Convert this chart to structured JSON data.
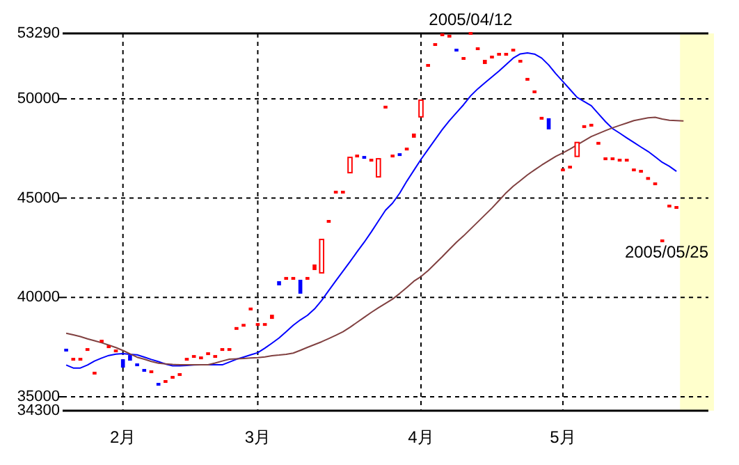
{
  "chart_data": {
    "type": "candlestick",
    "categories": [
      null,
      null,
      null,
      null,
      null,
      null,
      null,
      null,
      "2月",
      null,
      null,
      null,
      null,
      null,
      null,
      null,
      null,
      null,
      null,
      null,
      null,
      null,
      null,
      null,
      null,
      null,
      null,
      "3月",
      null,
      null,
      null,
      null,
      null,
      null,
      null,
      null,
      null,
      null,
      null,
      null,
      null,
      null,
      null,
      null,
      null,
      null,
      null,
      null,
      null,
      null,
      "4月",
      null,
      null,
      null,
      null,
      null,
      null,
      null,
      null,
      null,
      null,
      null,
      null,
      null,
      null,
      null,
      null,
      null,
      null,
      null,
      "5月",
      null,
      null,
      null,
      null,
      null,
      null,
      null,
      null,
      null,
      null,
      null,
      null,
      null,
      null,
      null,
      null,
      null,
      null,
      null,
      null
    ],
    "ohlc": [
      [
        37350,
        37350,
        37280,
        37280
      ],
      [
        36890,
        36890,
        36890,
        36890
      ],
      [
        36890,
        36890,
        36890,
        36890
      ],
      [
        37380,
        37380,
        37380,
        37380
      ],
      [
        36190,
        36190,
        36190,
        36190
      ],
      [
        37800,
        37800,
        37800,
        37800
      ],
      [
        37520,
        37520,
        37520,
        37520
      ],
      [
        37310,
        37310,
        37310,
        37310
      ],
      [
        36890,
        36890,
        36470,
        36470
      ],
      [
        37100,
        37100,
        36820,
        36820
      ],
      [
        36610,
        36610,
        36610,
        36610
      ],
      [
        36330,
        36330,
        36330,
        36330
      ],
      [
        36260,
        36260,
        36260,
        36260
      ],
      [
        35630,
        35630,
        35630,
        35630
      ],
      [
        35770,
        35770,
        35770,
        35770
      ],
      [
        35980,
        35980,
        35980,
        35980
      ],
      [
        36120,
        36120,
        36120,
        36120
      ],
      [
        36890,
        36890,
        36890,
        36890
      ],
      [
        37030,
        37030,
        37030,
        37030
      ],
      [
        36960,
        36960,
        36960,
        36960
      ],
      [
        37170,
        37170,
        37170,
        37170
      ],
      [
        37030,
        37030,
        37030,
        37030
      ],
      [
        37380,
        37380,
        37380,
        37380
      ],
      [
        37380,
        37380,
        37380,
        37380
      ],
      [
        38440,
        38440,
        38440,
        38440
      ],
      [
        38520,
        38600,
        38520,
        38600
      ],
      [
        39420,
        39420,
        39420,
        39420
      ],
      [
        38640,
        38640,
        38640,
        38640
      ],
      [
        38640,
        38640,
        38640,
        38640
      ],
      [
        38920,
        39130,
        38920,
        39130
      ],
      [
        40820,
        40820,
        40610,
        40610
      ],
      [
        40960,
        40960,
        40960,
        40960
      ],
      [
        40960,
        40960,
        40960,
        40960
      ],
      [
        40890,
        40890,
        40190,
        40190
      ],
      [
        40960,
        40960,
        40960,
        40960
      ],
      [
        41380,
        41660,
        41380,
        41660
      ],
      [
        41240,
        42920,
        41240,
        42920
      ],
      [
        43830,
        43830,
        43830,
        43830
      ],
      [
        45300,
        45300,
        45300,
        45300
      ],
      [
        45300,
        45300,
        45300,
        45300
      ],
      [
        46280,
        47050,
        46280,
        47050
      ],
      [
        47120,
        47120,
        47120,
        47120
      ],
      [
        47050,
        47050,
        47050,
        47050
      ],
      [
        46910,
        46910,
        46910,
        46910
      ],
      [
        46070,
        46980,
        46070,
        46980
      ],
      [
        49580,
        49580,
        49580,
        49580
      ],
      [
        47120,
        47120,
        47120,
        47120
      ],
      [
        47190,
        47190,
        47190,
        47190
      ],
      [
        47470,
        47470,
        47470,
        47470
      ],
      [
        48040,
        48250,
        48040,
        48250
      ],
      [
        49090,
        49930,
        49090,
        49930
      ],
      [
        51680,
        51680,
        51680,
        51680
      ],
      [
        52730,
        52730,
        52730,
        52730
      ],
      [
        53220,
        53220,
        53220,
        53220
      ],
      [
        53150,
        53150,
        53150,
        53150
      ],
      [
        52450,
        52450,
        52450,
        52450
      ],
      [
        52030,
        52030,
        52030,
        52030
      ],
      [
        53290,
        53290,
        53290,
        53290
      ],
      [
        52520,
        52520,
        52520,
        52520
      ],
      [
        51750,
        51960,
        51750,
        51960
      ],
      [
        52100,
        52100,
        52100,
        52100
      ],
      [
        52240,
        52240,
        52240,
        52240
      ],
      [
        52240,
        52240,
        52240,
        52240
      ],
      [
        52450,
        52450,
        52450,
        52450
      ],
      [
        51890,
        51890,
        51890,
        51890
      ],
      [
        50980,
        50980,
        50980,
        50980
      ],
      [
        50350,
        50350,
        50350,
        50350
      ],
      [
        49020,
        49020,
        49020,
        49020
      ],
      [
        49020,
        49020,
        48460,
        48460
      ],
      null,
      [
        46420,
        46420,
        46420,
        46420
      ],
      [
        46560,
        46560,
        46560,
        46560
      ],
      [
        47100,
        47800,
        47100,
        47800
      ],
      [
        48600,
        48600,
        48600,
        48600
      ],
      [
        48670,
        48670,
        48670,
        48670
      ],
      [
        47760,
        47760,
        47760,
        47760
      ],
      [
        46980,
        46980,
        46980,
        46980
      ],
      [
        46980,
        46980,
        46980,
        46980
      ],
      [
        46910,
        46910,
        46910,
        46910
      ],
      [
        46910,
        46910,
        46910,
        46910
      ],
      [
        46420,
        46420,
        46420,
        46420
      ],
      [
        46350,
        46350,
        46350,
        46350
      ],
      [
        45990,
        45990,
        45990,
        45990
      ],
      [
        45720,
        45720,
        45720,
        45720
      ],
      [
        42850,
        42850,
        42850,
        42850
      ],
      [
        44600,
        44600,
        44600,
        44600
      ],
      [
        44530,
        44530,
        44530,
        44530
      ],
      null,
      null,
      null,
      null
    ],
    "colors": [
      "#0000ff",
      "#ff0000",
      "#ff0000",
      "#ff0000",
      "#ff0000",
      "#ff0000",
      "#ff0000",
      "#ff0000",
      "#0000ff",
      "#0000ff",
      "#0000ff",
      "#0000ff",
      "#ff0000",
      "#0000ff",
      "#ff0000",
      "#ff0000",
      "#ff0000",
      "#ff0000",
      "#ff0000",
      "#ff0000",
      "#ff0000",
      "#ff0000",
      "#ff0000",
      "#ff0000",
      "#ff0000",
      "#ff0000",
      "#ff0000",
      "#ff0000",
      "#ff0000",
      "#ff0000",
      "#0000ff",
      "#ff0000",
      "#ff0000",
      "#0000ff",
      "#ff0000",
      "#ff0000",
      "#ff0000",
      "#ff0000",
      "#ff0000",
      "#ff0000",
      "#ff0000",
      "#ff0000",
      "#0000ff",
      "#ff0000",
      "#ff0000",
      "#ff0000",
      "#ff0000",
      "#0000ff",
      "#ff0000",
      "#ff0000",
      "#ff0000",
      "#ff0000",
      "#ff0000",
      "#ff0000",
      "#ff0000",
      "#0000ff",
      "#ff0000",
      "#ff0000",
      "#ff0000",
      "#ff0000",
      "#ff0000",
      "#ff0000",
      "#ff0000",
      "#ff0000",
      "#ff0000",
      "#ff0000",
      "#ff0000",
      "#ff0000",
      "#0000ff",
      null,
      "#ff0000",
      "#ff0000",
      "#ff0000",
      "#ff0000",
      "#ff0000",
      "#ff0000",
      "#ff0000",
      "#ff0000",
      "#ff0000",
      "#ff0000",
      "#ff0000",
      "#ff0000",
      "#ff0000",
      "#ff0000",
      "#ff0000",
      "#ff0000",
      "#ff0000",
      null,
      null,
      null,
      null
    ],
    "series": [
      {
        "type": "line",
        "color": "#0000ff",
        "values": [
          36600,
          36450,
          36450,
          36600,
          36800,
          36950,
          37080,
          37150,
          37170,
          37140,
          37110,
          37000,
          36880,
          36770,
          36650,
          36560,
          36560,
          36580,
          36600,
          36610,
          36610,
          36610,
          36610,
          36750,
          36890,
          37000,
          37110,
          37220,
          37450,
          37700,
          37960,
          38280,
          38600,
          38870,
          39100,
          39420,
          39850,
          40350,
          40840,
          41320,
          41800,
          42300,
          42780,
          43300,
          43850,
          44390,
          44750,
          45250,
          45850,
          46400,
          46950,
          47450,
          47950,
          48450,
          48900,
          49300,
          49700,
          50150,
          50500,
          50800,
          51100,
          51400,
          51720,
          52050,
          52260,
          52310,
          52250,
          52050,
          51700,
          51260,
          50870,
          50470,
          50070,
          49860,
          49650,
          49250,
          48850,
          48500,
          48270,
          48030,
          47800,
          47570,
          47350,
          47080,
          46800,
          46600,
          46350,
          null,
          null,
          null,
          null
        ]
      },
      {
        "type": "line",
        "color": "#804040",
        "values": [
          38200,
          38120,
          38030,
          37920,
          37820,
          37720,
          37600,
          37480,
          37330,
          37160,
          36990,
          36890,
          36780,
          36690,
          36660,
          36630,
          36610,
          36610,
          36610,
          36610,
          36610,
          36700,
          36800,
          36890,
          36910,
          36930,
          36950,
          36970,
          37010,
          37070,
          37100,
          37140,
          37200,
          37340,
          37490,
          37630,
          37770,
          37930,
          38100,
          38270,
          38500,
          38750,
          39000,
          39250,
          39480,
          39700,
          39920,
          40200,
          40500,
          40820,
          41050,
          41350,
          41700,
          42050,
          42420,
          42780,
          43100,
          43450,
          43800,
          44150,
          44500,
          44880,
          45270,
          45600,
          45880,
          46170,
          46420,
          46660,
          46880,
          47100,
          47280,
          47470,
          47680,
          47890,
          48100,
          48250,
          48400,
          48540,
          48660,
          48780,
          48900,
          48970,
          49040,
          49070,
          48980,
          48920,
          48900,
          48880,
          null,
          null,
          null
        ]
      }
    ],
    "ylim": [
      34300,
      53290
    ],
    "yticks": [
      34300,
      35000,
      40000,
      45000,
      50000,
      53290
    ],
    "grid": true,
    "annotations": [
      "2005/04/12",
      "2005/05/25"
    ]
  }
}
